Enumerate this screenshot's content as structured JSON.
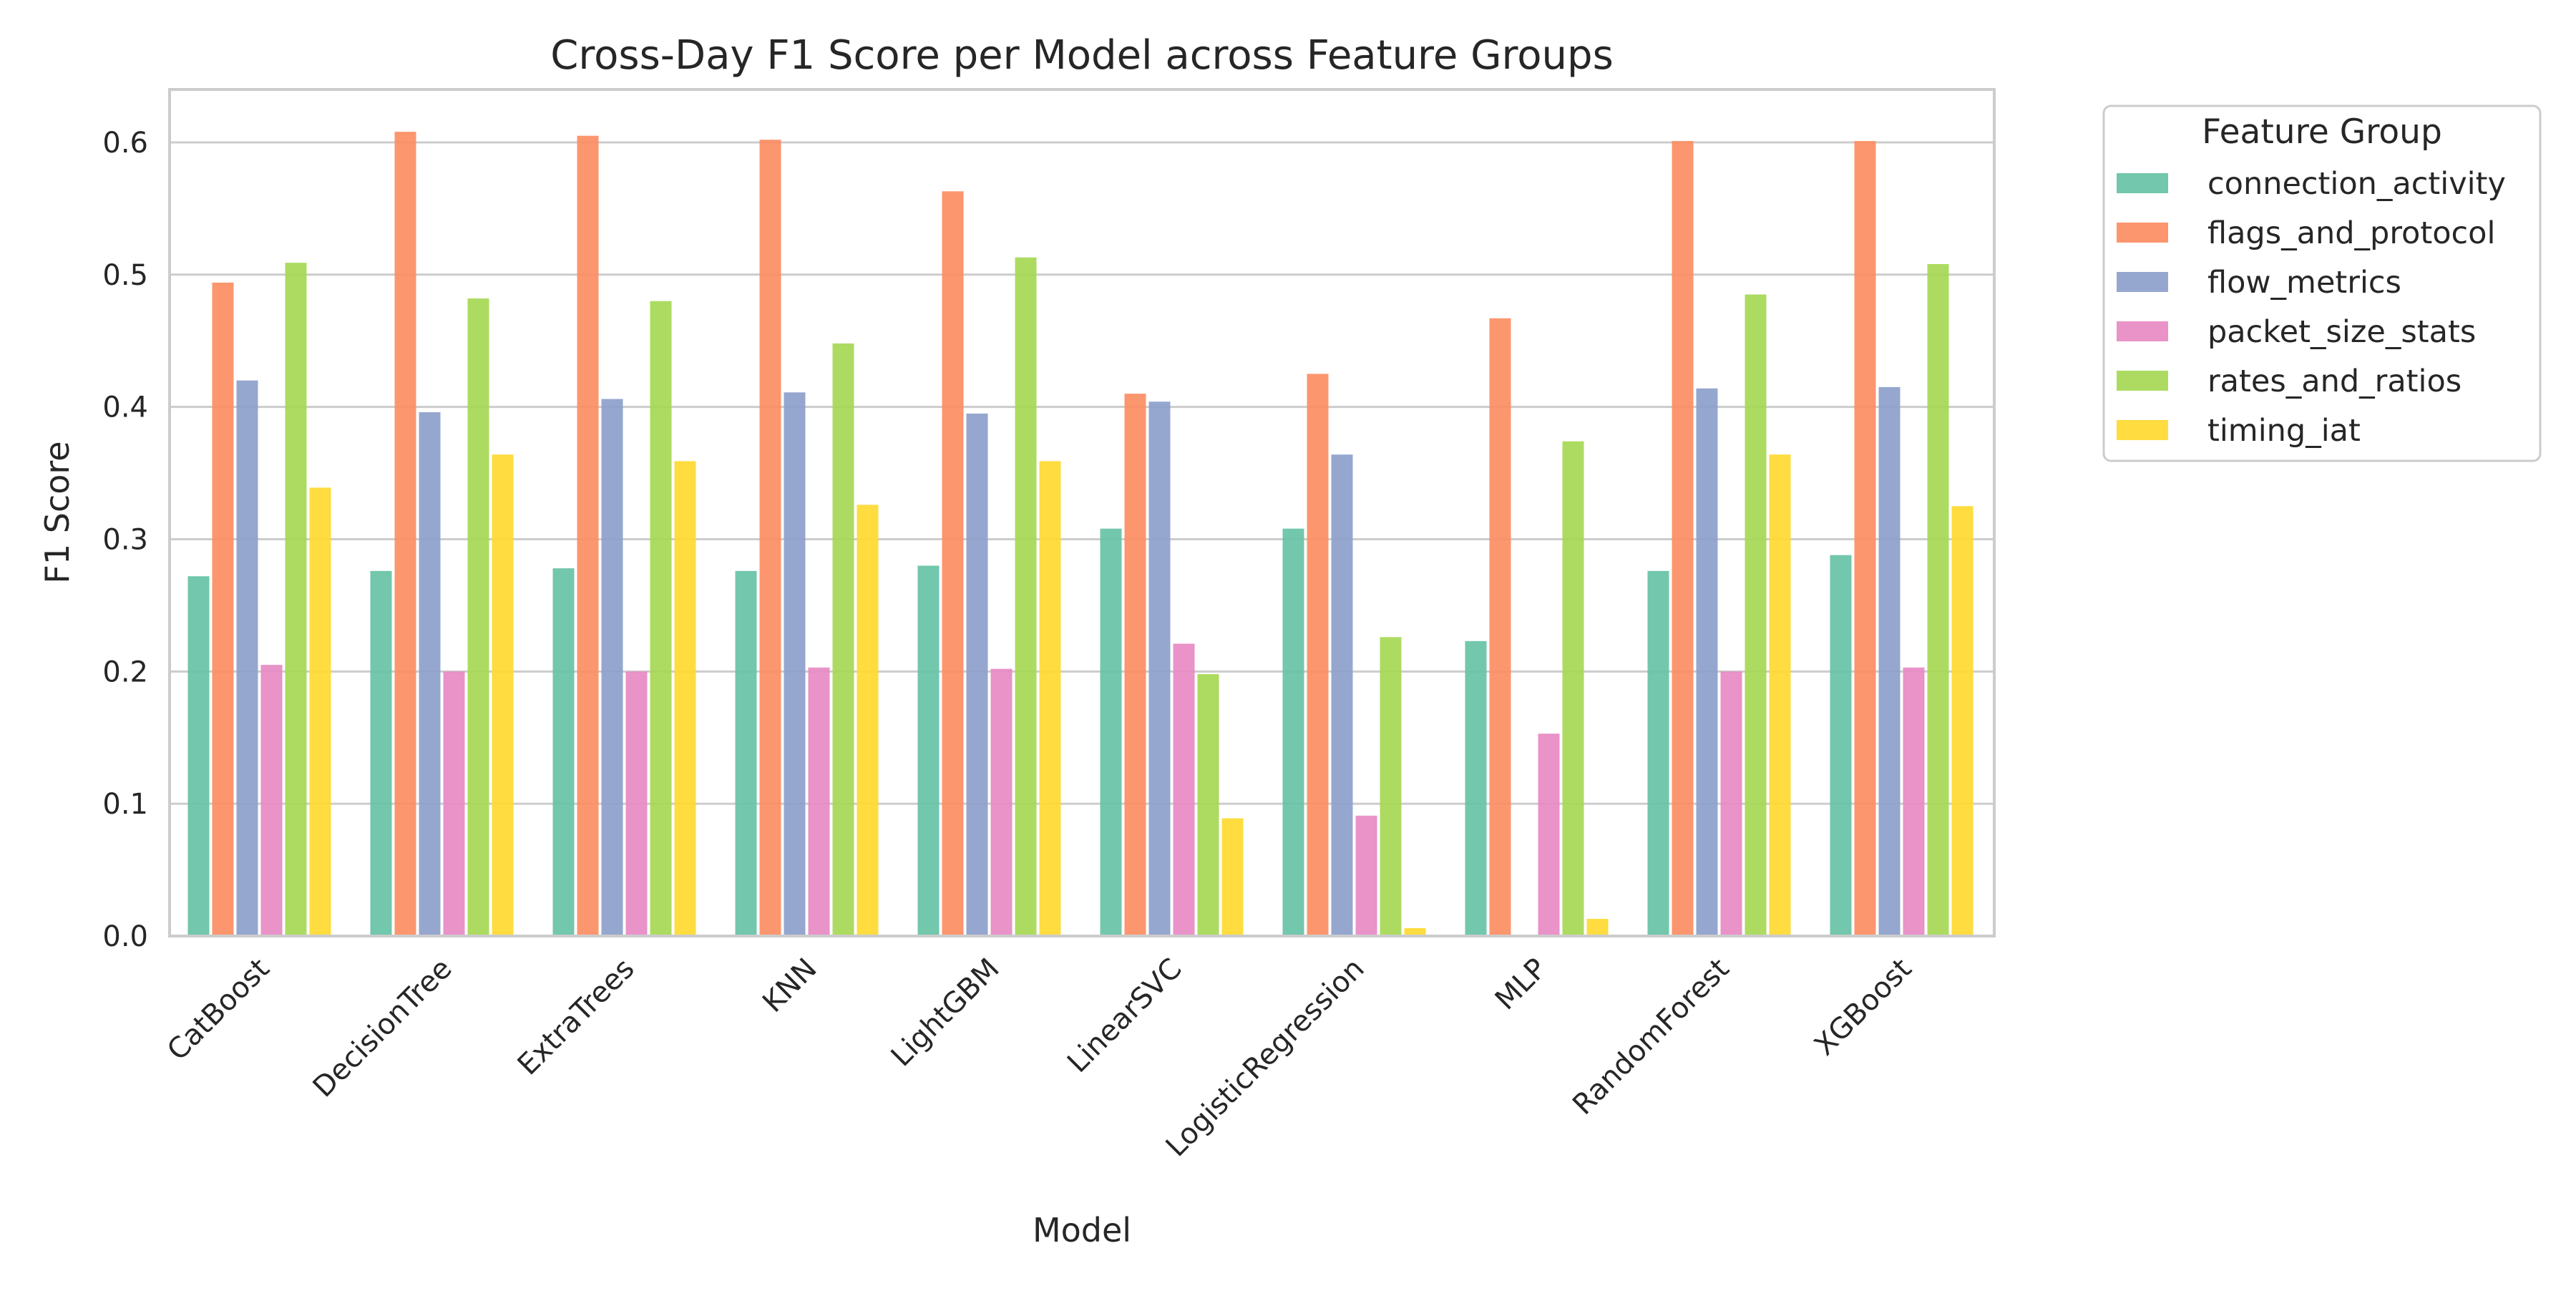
{
  "chart_data": {
    "type": "bar",
    "title": "Cross-Day F1 Score per Model across Feature Groups",
    "xlabel": "Model",
    "ylabel": "F1 Score",
    "ylim": [
      0,
      0.64
    ],
    "yticks": [
      "0.0",
      "0.1",
      "0.2",
      "0.3",
      "0.4",
      "0.5",
      "0.6"
    ],
    "grid": true,
    "legend": {
      "title": "Feature Group",
      "placement": "outside-top-right"
    },
    "categories": [
      "CatBoost",
      "DecisionTree",
      "ExtraTrees",
      "KNN",
      "LightGBM",
      "LinearSVC",
      "LogisticRegression",
      "MLP",
      "RandomForest",
      "XGBoost"
    ],
    "series": [
      {
        "name": "connection_activity",
        "color": "#66c2a5",
        "values": [
          0.272,
          0.276,
          0.278,
          0.276,
          0.28,
          0.308,
          0.308,
          0.223,
          0.276,
          0.288
        ]
      },
      {
        "name": "flags_and_protocol",
        "color": "#fc8d62",
        "values": [
          0.494,
          0.608,
          0.605,
          0.602,
          0.563,
          0.41,
          0.425,
          0.467,
          0.601,
          0.601
        ]
      },
      {
        "name": "flow_metrics",
        "color": "#8da0cb",
        "values": [
          0.42,
          0.396,
          0.406,
          0.411,
          0.395,
          0.404,
          0.364,
          0.0,
          0.414,
          0.415
        ]
      },
      {
        "name": "packet_size_stats",
        "color": "#e78ac3",
        "values": [
          0.205,
          0.2,
          0.2,
          0.203,
          0.202,
          0.221,
          0.091,
          0.153,
          0.2,
          0.203
        ]
      },
      {
        "name": "rates_and_ratios",
        "color": "#a6d854",
        "values": [
          0.509,
          0.482,
          0.48,
          0.448,
          0.513,
          0.198,
          0.226,
          0.374,
          0.485,
          0.508
        ]
      },
      {
        "name": "timing_iat",
        "color": "#ffd92f",
        "values": [
          0.339,
          0.364,
          0.359,
          0.326,
          0.359,
          0.089,
          0.006,
          0.013,
          0.364,
          0.325
        ]
      }
    ]
  }
}
